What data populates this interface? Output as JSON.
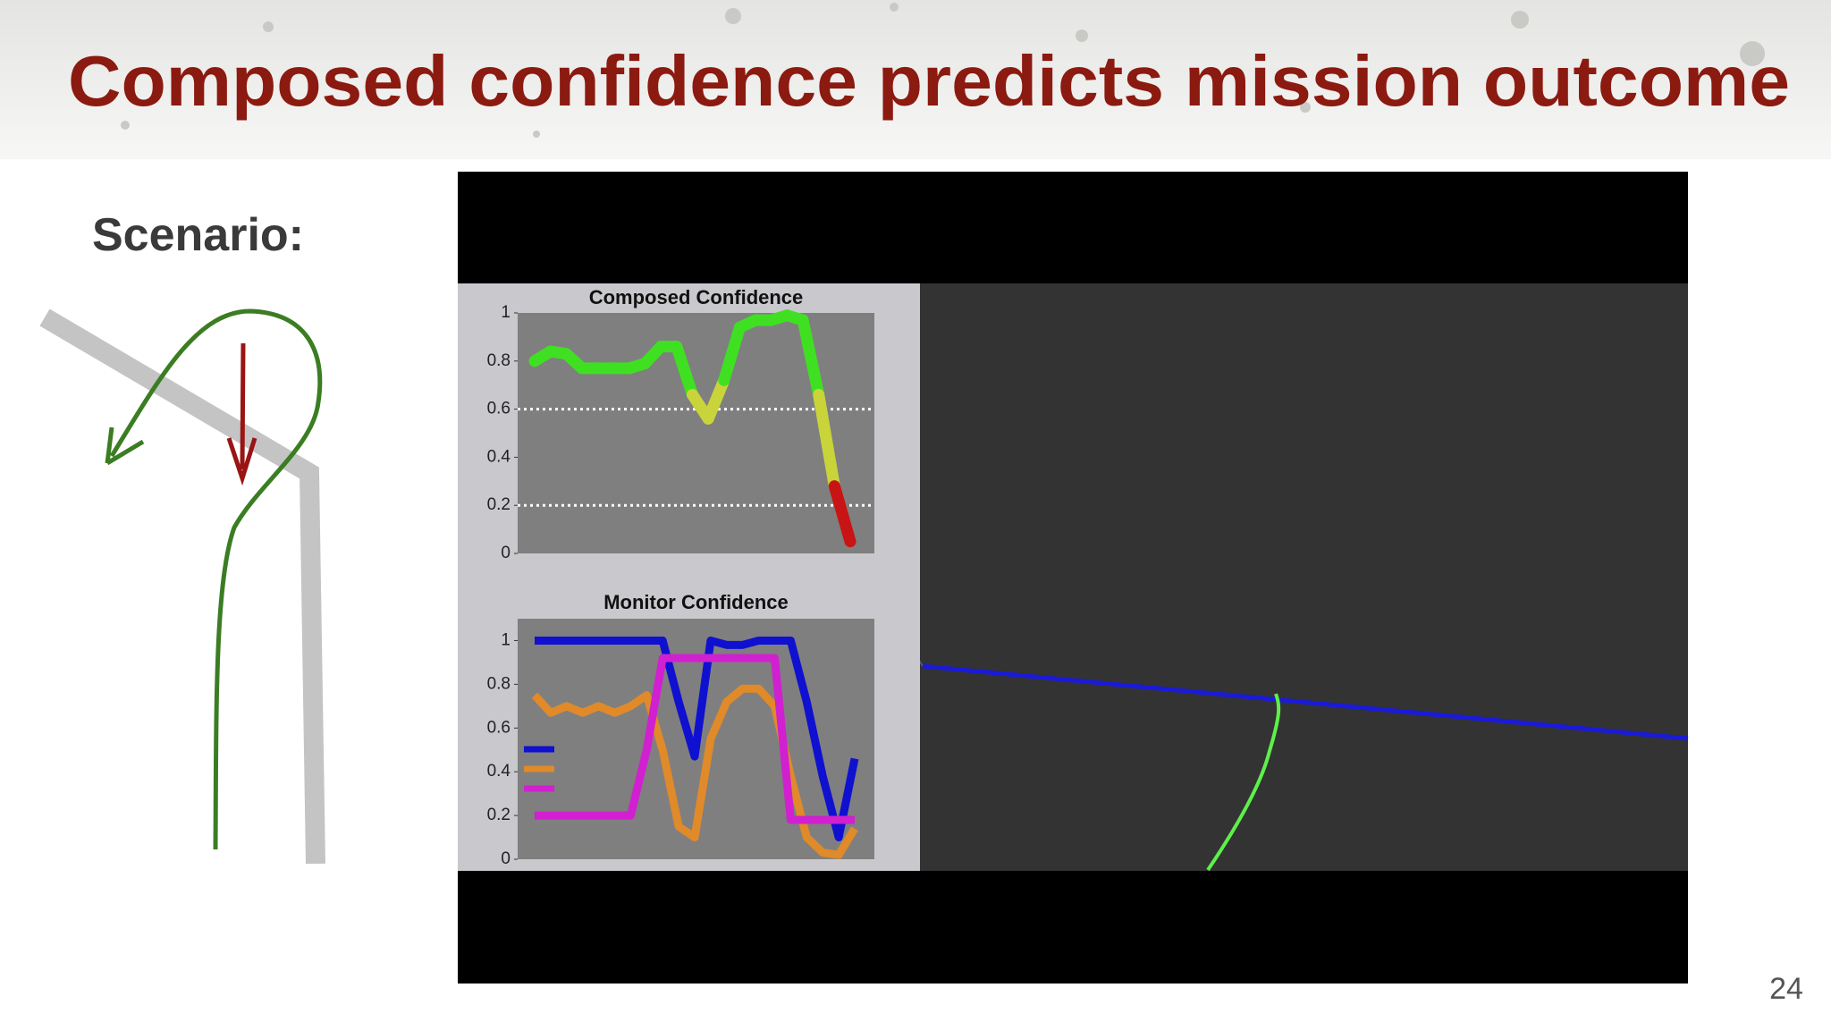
{
  "title": "Composed confidence predicts mission outcome",
  "scenario_label": "Scenario:",
  "page_number": "24",
  "video": {
    "charts": [
      {
        "type": "line",
        "title": "Composed Confidence",
        "ylim": [
          0,
          1
        ],
        "yticks": [
          0,
          0.2,
          0.4,
          0.6,
          0.8,
          1
        ],
        "threshold_lines": [
          0.6,
          0.2
        ],
        "colors": [
          "#3fe022",
          "#c9d43a",
          "#c81414"
        ],
        "values": [
          0.8,
          0.84,
          0.83,
          0.77,
          0.77,
          0.77,
          0.77,
          0.79,
          0.86,
          0.86,
          0.66,
          0.56,
          0.72,
          0.94,
          0.97,
          0.97,
          0.99,
          0.97,
          0.66,
          0.28,
          0.05
        ]
      },
      {
        "type": "line",
        "title": "Monitor Confidence",
        "ylim": [
          0,
          1.1
        ],
        "yticks": [
          0,
          0.2,
          0.4,
          0.6,
          0.8,
          1
        ],
        "series": [
          {
            "color": "#1010d0",
            "values": [
              1,
              1,
              1,
              1,
              1,
              1,
              1,
              1,
              1,
              0.72,
              0.47,
              1,
              0.98,
              0.98,
              1,
              1,
              1,
              0.72,
              0.38,
              0.1,
              0.46
            ]
          },
          {
            "color": "#e08a2a",
            "values": [
              0.75,
              0.67,
              0.7,
              0.67,
              0.7,
              0.67,
              0.7,
              0.75,
              0.5,
              0.15,
              0.1,
              0.55,
              0.72,
              0.78,
              0.78,
              0.7,
              0.38,
              0.1,
              0.03,
              0.02,
              0.14
            ]
          },
          {
            "color": "#d020d0",
            "values": [
              0.2,
              0.2,
              0.2,
              0.2,
              0.2,
              0.2,
              0.2,
              0.5,
              0.92,
              0.92,
              0.92,
              0.92,
              0.92,
              0.92,
              0.92,
              0.92,
              0.18,
              0.18,
              0.18,
              0.18,
              0.18
            ]
          }
        ]
      }
    ]
  }
}
